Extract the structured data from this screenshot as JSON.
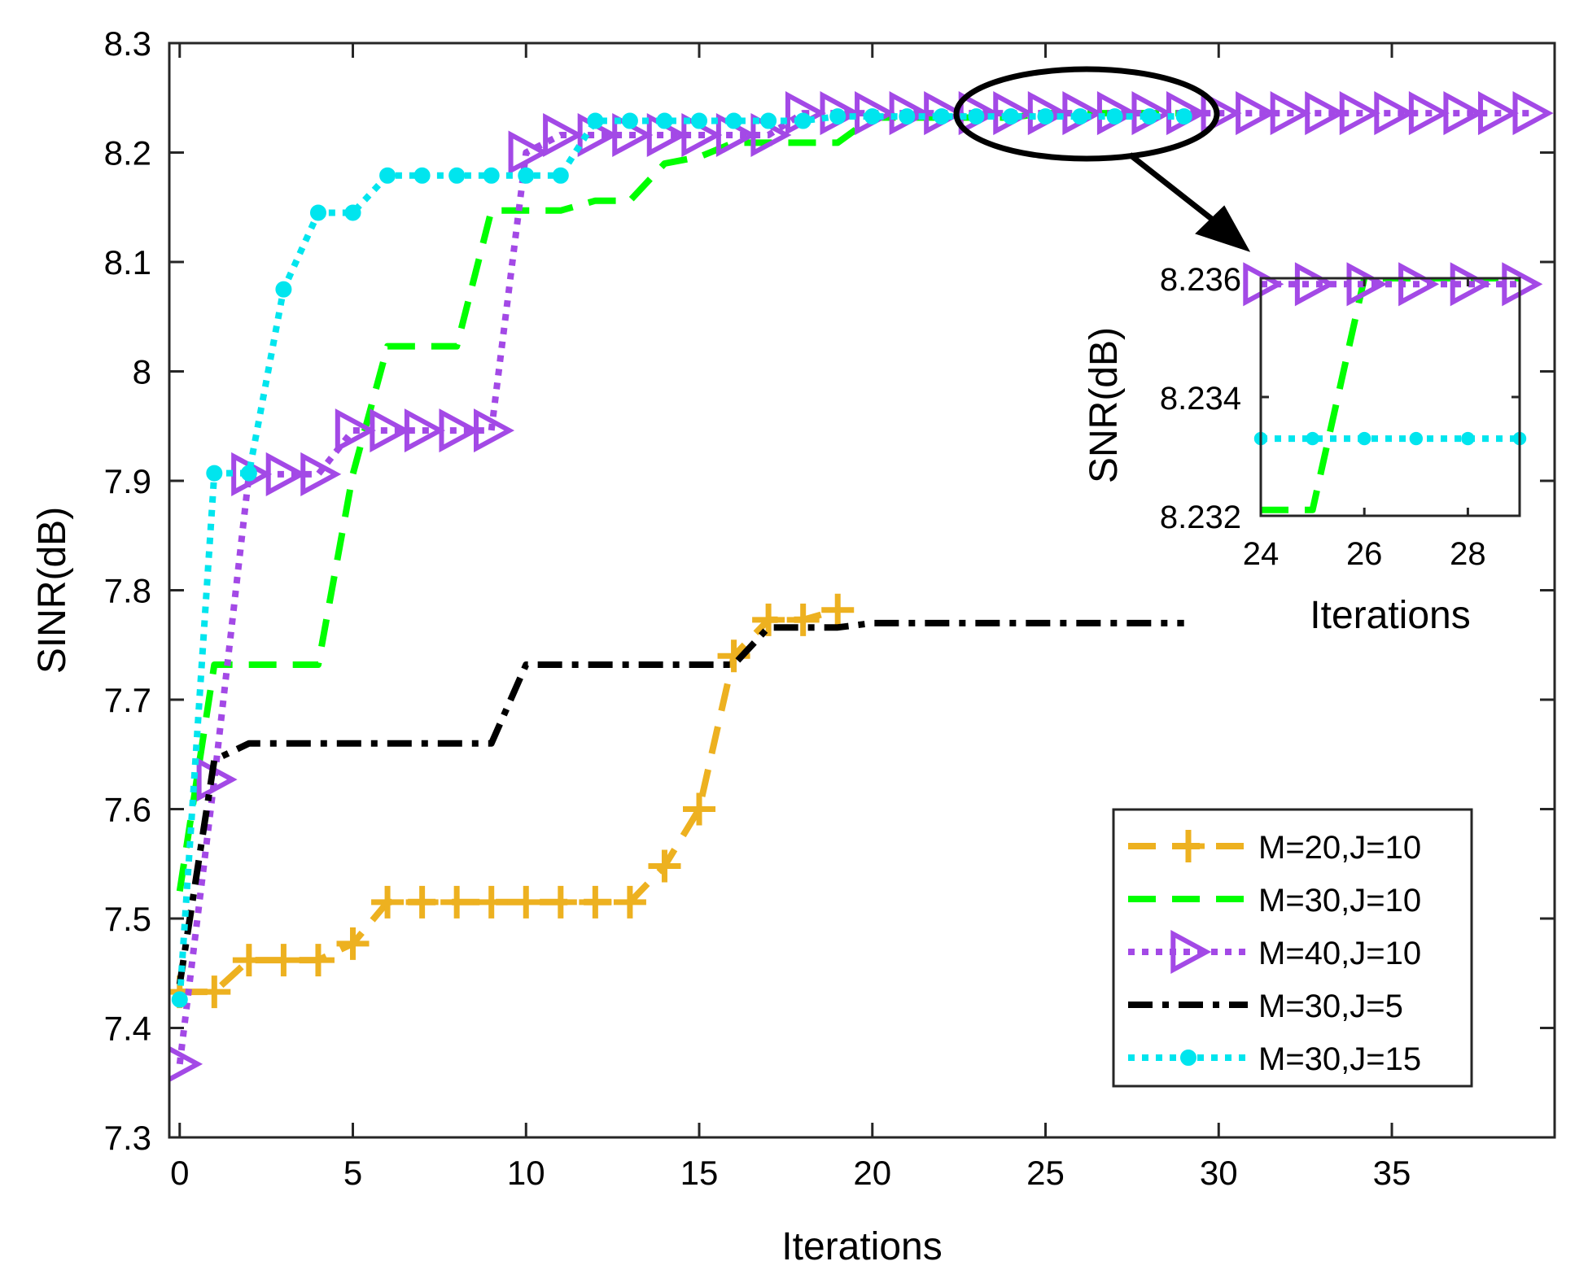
{
  "chart_data": {
    "type": "line",
    "title": "",
    "xlabel": "Iterations",
    "ylabel": "SINR(dB)",
    "xlim": [
      -0.3,
      39.7
    ],
    "ylim": [
      7.3,
      8.3
    ],
    "xticks": [
      0,
      5,
      10,
      15,
      20,
      25,
      30,
      35
    ],
    "xtick_labels": [
      "0",
      "5",
      "10",
      "15",
      "20",
      "25",
      "30",
      "35"
    ],
    "yticks": [
      7.3,
      7.4,
      7.5,
      7.6,
      7.7,
      7.8,
      7.9,
      8,
      8.1,
      8.2,
      8.3
    ],
    "ytick_labels": [
      "7.3",
      "7.4",
      "7.5",
      "7.6",
      "7.7",
      "7.8",
      "7.9",
      "8",
      "8.1",
      "8.2",
      "8.3"
    ],
    "grid": false,
    "legend_position": "bottom-right",
    "series": [
      {
        "name": "M=20,J=10",
        "color": "#EDB120",
        "line_style": "dashed",
        "marker": "plus",
        "x": [
          0,
          1,
          2,
          3,
          4,
          5,
          6,
          7,
          8,
          9,
          10,
          11,
          12,
          13,
          14,
          15,
          16,
          17,
          18,
          19
        ],
        "y": [
          7.433,
          7.433,
          7.462,
          7.462,
          7.462,
          7.477,
          7.515,
          7.515,
          7.515,
          7.515,
          7.515,
          7.515,
          7.515,
          7.515,
          7.548,
          7.6,
          7.74,
          7.773,
          7.773,
          7.782
        ]
      },
      {
        "name": "M=30,J=10",
        "color": "#00FF00",
        "line_style": "dashed",
        "marker": "none",
        "x": [
          0,
          1,
          2,
          3,
          4,
          5,
          6,
          7,
          8,
          9,
          10,
          11,
          12,
          13,
          14,
          15,
          16,
          17,
          18,
          19,
          20,
          21,
          22,
          23,
          24,
          25,
          26,
          27,
          28,
          29
        ],
        "y": [
          7.525,
          7.732,
          7.732,
          7.732,
          7.732,
          7.906,
          8.023,
          8.023,
          8.023,
          8.147,
          8.147,
          8.147,
          8.156,
          8.156,
          8.19,
          8.196,
          8.209,
          8.209,
          8.209,
          8.209,
          8.232,
          8.232,
          8.232,
          8.232,
          8.232,
          8.236,
          8.236,
          8.236,
          8.236,
          8.236
        ]
      },
      {
        "name": "M=40,J=10",
        "color": "#A349E6",
        "line_style": "dotted",
        "marker": "triangle-right",
        "x": [
          0,
          1,
          2,
          3,
          4,
          5,
          6,
          7,
          8,
          9,
          10,
          11,
          12,
          13,
          14,
          15,
          16,
          17,
          18,
          19,
          20,
          21,
          22,
          23,
          24,
          25,
          26,
          27,
          28,
          29,
          30,
          31,
          32,
          33,
          34,
          35,
          36,
          37,
          38,
          39
        ],
        "y": [
          7.367,
          7.627,
          7.906,
          7.906,
          7.906,
          7.946,
          7.946,
          7.946,
          7.946,
          7.946,
          8.2,
          8.216,
          8.216,
          8.216,
          8.216,
          8.216,
          8.216,
          8.216,
          8.236,
          8.236,
          8.236,
          8.236,
          8.236,
          8.236,
          8.236,
          8.236,
          8.236,
          8.236,
          8.236,
          8.236,
          8.236,
          8.236,
          8.236,
          8.236,
          8.236,
          8.236,
          8.236,
          8.236,
          8.236,
          8.236
        ]
      },
      {
        "name": "M=30,J=5",
        "color": "#000000",
        "line_style": "dashdot",
        "marker": "none",
        "x": [
          0,
          1,
          2,
          3,
          4,
          5,
          6,
          7,
          8,
          9,
          10,
          11,
          12,
          13,
          14,
          15,
          16,
          17,
          18,
          19,
          20,
          21,
          22,
          23,
          24,
          25,
          26,
          27,
          28,
          29
        ],
        "y": [
          7.44,
          7.645,
          7.66,
          7.66,
          7.66,
          7.66,
          7.66,
          7.66,
          7.66,
          7.66,
          7.732,
          7.732,
          7.732,
          7.732,
          7.732,
          7.732,
          7.732,
          7.766,
          7.766,
          7.766,
          7.77,
          7.77,
          7.77,
          7.77,
          7.77,
          7.77,
          7.77,
          7.77,
          7.77,
          7.77
        ]
      },
      {
        "name": "M=30,J=15",
        "color": "#00E5EE",
        "line_style": "dotted",
        "marker": "circle",
        "x": [
          0,
          1,
          2,
          3,
          4,
          5,
          6,
          7,
          8,
          9,
          10,
          11,
          12,
          13,
          14,
          15,
          16,
          17,
          18,
          19,
          20,
          21,
          22,
          23,
          24,
          25,
          26,
          27,
          28,
          29
        ],
        "y": [
          7.426,
          7.907,
          7.907,
          8.075,
          8.145,
          8.145,
          8.179,
          8.179,
          8.179,
          8.179,
          8.179,
          8.179,
          8.229,
          8.229,
          8.229,
          8.229,
          8.229,
          8.229,
          8.229,
          8.233,
          8.233,
          8.233,
          8.233,
          8.233,
          8.233,
          8.233,
          8.233,
          8.233,
          8.233,
          8.233
        ]
      }
    ],
    "inset": {
      "xlabel": "Iterations",
      "ylabel": "SNR(dB)",
      "xlim": [
        24,
        29
      ],
      "ylim": [
        8.232,
        8.236
      ],
      "xticks": [
        24,
        26,
        28
      ],
      "xtick_labels": [
        "24",
        "26",
        "28"
      ],
      "yticks": [
        8.232,
        8.234,
        8.236
      ],
      "ytick_labels": [
        "8.232",
        "8.234",
        "8.236"
      ],
      "series": [
        {
          "name": "M=30,J=10",
          "x": [
            24,
            25,
            26,
            27,
            28,
            29
          ],
          "y": [
            8.2321,
            8.2321,
            8.236,
            8.236,
            8.236,
            8.236
          ]
        },
        {
          "name": "M=40,J=10",
          "x": [
            24,
            25,
            26,
            27,
            28,
            29
          ],
          "y": [
            8.2359,
            8.2359,
            8.2359,
            8.2359,
            8.2359,
            8.2359
          ]
        },
        {
          "name": "M=30,J=15",
          "x": [
            24,
            25,
            26,
            27,
            28,
            29
          ],
          "y": [
            8.2333,
            8.2333,
            8.2333,
            8.2333,
            8.2333,
            8.2333
          ]
        }
      ]
    }
  }
}
